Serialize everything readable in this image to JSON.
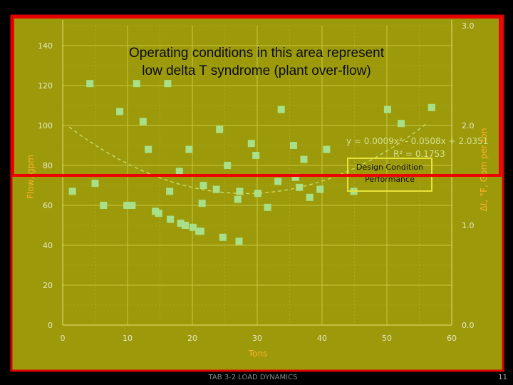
{
  "slide": {
    "footer": "TAB 3-2 LOAD DYNAMICS",
    "number": "11",
    "callout_lines": [
      "Operating conditions in this area represent",
      "low delta T syndrome (plant over-flow)"
    ]
  },
  "colors": {
    "plot_background": "#9c9a0a",
    "marker": "#a8e08a",
    "axis_label": "#ffb030",
    "equation_text": "#d8e090",
    "box_outline": "#e8e23c",
    "highlight_frame": "#ee0000"
  },
  "chart_data": {
    "type": "scatter",
    "xlabel": "Tons",
    "ylabel": "Flow, gpm",
    "y2label": "Δt, °F, Gpm per ton",
    "xlim": [
      0,
      60
    ],
    "ylim": [
      0,
      150
    ],
    "y2lim": [
      0,
      3
    ],
    "xticks": [
      "0",
      "10",
      "20",
      "30",
      "40",
      "50",
      "60"
    ],
    "yticks": [
      "0",
      "20",
      "40",
      "60",
      "80",
      "100",
      "120",
      "140"
    ],
    "y2ticks": [
      "0.0",
      "1.0",
      "2.0",
      "3.0"
    ],
    "grid": true,
    "points": [
      {
        "x": 1.5,
        "y": 67
      },
      {
        "x": 4.2,
        "y": 121
      },
      {
        "x": 5.0,
        "y": 71
      },
      {
        "x": 6.3,
        "y": 60
      },
      {
        "x": 8.8,
        "y": 107
      },
      {
        "x": 9.9,
        "y": 60
      },
      {
        "x": 10.7,
        "y": 60
      },
      {
        "x": 11.4,
        "y": 121
      },
      {
        "x": 12.4,
        "y": 102
      },
      {
        "x": 13.2,
        "y": 88
      },
      {
        "x": 14.3,
        "y": 57
      },
      {
        "x": 14.8,
        "y": 56
      },
      {
        "x": 16.2,
        "y": 121
      },
      {
        "x": 16.5,
        "y": 67
      },
      {
        "x": 16.6,
        "y": 53
      },
      {
        "x": 18.0,
        "y": 77
      },
      {
        "x": 18.2,
        "y": 51
      },
      {
        "x": 18.9,
        "y": 50
      },
      {
        "x": 19.5,
        "y": 88
      },
      {
        "x": 20.1,
        "y": 49
      },
      {
        "x": 21.0,
        "y": 47
      },
      {
        "x": 21.3,
        "y": 47
      },
      {
        "x": 21.5,
        "y": 61
      },
      {
        "x": 21.7,
        "y": 70
      },
      {
        "x": 23.7,
        "y": 68
      },
      {
        "x": 24.2,
        "y": 98
      },
      {
        "x": 24.7,
        "y": 44
      },
      {
        "x": 25.4,
        "y": 80
      },
      {
        "x": 27.0,
        "y": 63
      },
      {
        "x": 27.2,
        "y": 42
      },
      {
        "x": 27.3,
        "y": 67
      },
      {
        "x": 29.1,
        "y": 91
      },
      {
        "x": 29.8,
        "y": 85
      },
      {
        "x": 30.1,
        "y": 66
      },
      {
        "x": 31.6,
        "y": 59
      },
      {
        "x": 33.2,
        "y": 72
      },
      {
        "x": 33.7,
        "y": 108
      },
      {
        "x": 35.6,
        "y": 90
      },
      {
        "x": 35.9,
        "y": 74
      },
      {
        "x": 36.5,
        "y": 69
      },
      {
        "x": 37.2,
        "y": 83
      },
      {
        "x": 38.1,
        "y": 64
      },
      {
        "x": 39.7,
        "y": 68
      },
      {
        "x": 40.7,
        "y": 88
      },
      {
        "x": 44.9,
        "y": 67
      },
      {
        "x": 50.1,
        "y": 108
      },
      {
        "x": 52.2,
        "y": 101
      },
      {
        "x": 56.9,
        "y": 109
      }
    ],
    "trendline": {
      "equation": "y = 0.0009x² - 0.0508x + 2.0351",
      "r_squared": "R² = 0.1753",
      "coefficients": [
        0.0009,
        -0.0508,
        2.0351
      ],
      "axis": "secondary"
    },
    "annotations": [
      {
        "lines": [
          "Design Condition",
          "Performance"
        ]
      }
    ]
  }
}
